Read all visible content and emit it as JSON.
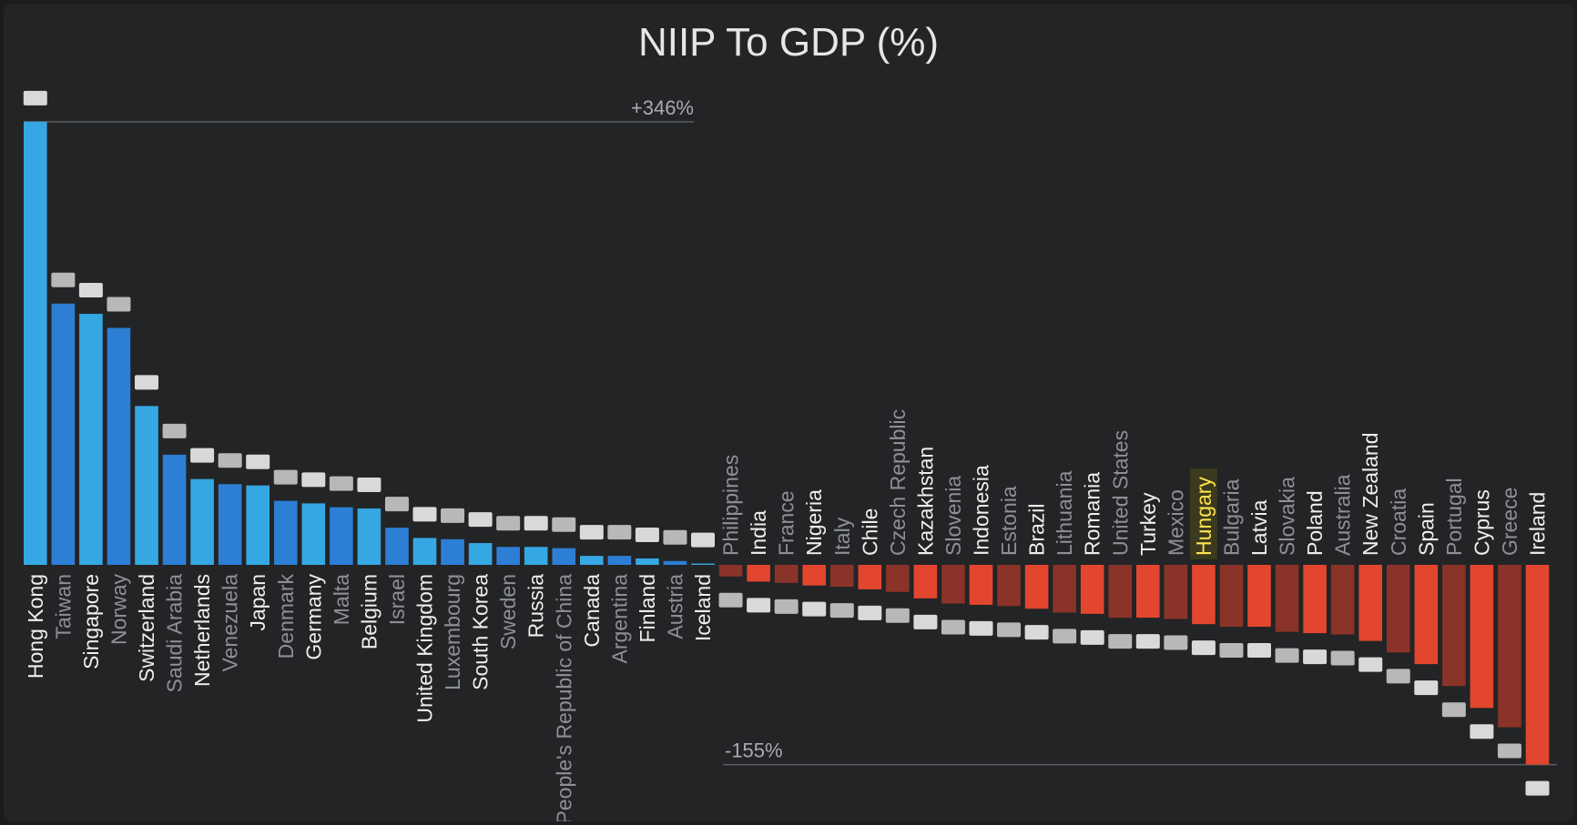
{
  "chart_data": {
    "type": "bar",
    "title": "NIIP To GDP (%)",
    "unit": "%",
    "max_label": "+346%",
    "min_label": "-155%",
    "highlight": "Hungary",
    "colors": {
      "positive_a": "#35a8e3",
      "positive_b": "#2d7fd5",
      "negative_a": "#e2462e",
      "negative_b": "#8a3328",
      "highlight_text": "#ffe34d"
    },
    "categories": [
      "Hong Kong",
      "Taiwan",
      "Singapore",
      "Norway",
      "Switzerland",
      "Saudi Arabia",
      "Netherlands",
      "Venezuela",
      "Japan",
      "Denmark",
      "Germany",
      "Malta",
      "Belgium",
      "Israel",
      "United Kingdom",
      "Luxembourg",
      "South Korea",
      "Sweden",
      "Russia",
      "People's Republic of China",
      "Canada",
      "Argentina",
      "Finland",
      "Austria",
      "Iceland",
      "Philippines",
      "India",
      "France",
      "Nigeria",
      "Italy",
      "Chile",
      "Czech Republic",
      "Kazakhstan",
      "Slovenia",
      "Indonesia",
      "Estonia",
      "Brazil",
      "Lithuania",
      "Romania",
      "United States",
      "Turkey",
      "Mexico",
      "Hungary",
      "Bulgaria",
      "Latvia",
      "Slovakia",
      "Poland",
      "Australia",
      "New Zealand",
      "Croatia",
      "Spain",
      "Portugal",
      "Cyprus",
      "Greece",
      "Ireland"
    ],
    "values": [
      346,
      204,
      196,
      185,
      124,
      86,
      67,
      63,
      62,
      50,
      48,
      45,
      44,
      29,
      21,
      20,
      17,
      14,
      14,
      13,
      7,
      7,
      5,
      3,
      1,
      -9,
      -13,
      -14,
      -16,
      -17,
      -19,
      -21,
      -26,
      -30,
      -31,
      -32,
      -34,
      -37,
      -38,
      -41,
      -41,
      -42,
      -46,
      -48,
      -48,
      -52,
      -53,
      -54,
      -59,
      -68,
      -77,
      -94,
      -111,
      -126,
      -155
    ]
  }
}
